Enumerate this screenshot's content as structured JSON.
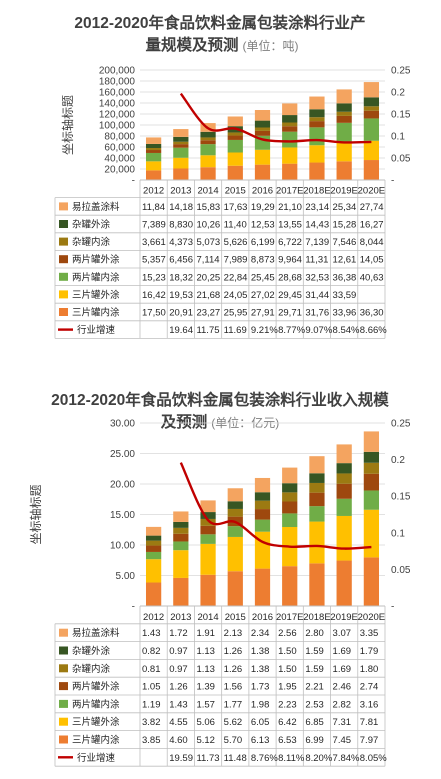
{
  "chart_data": [
    {
      "type": "bar",
      "stacked": true,
      "title_line1": "2012-2020年食品饮料金属包装涂料行业产",
      "title_line2": "量规模及预测",
      "unit_text": "(单位：吨)",
      "ylabel": "坐标轴标题",
      "categories": [
        "2012",
        "2013",
        "2014",
        "2015",
        "2016",
        "2017E",
        "2018E",
        "2019E",
        "2020E"
      ],
      "ylim": [
        0,
        200000
      ],
      "y_ticks": [
        "-",
        "20,000",
        "40,000",
        "60,000",
        "80,000",
        "100,000",
        "120,000",
        "140,000",
        "160,000",
        "180,000",
        "200,000"
      ],
      "y2lim": [
        0,
        0.25
      ],
      "y2_ticks": [
        "-",
        "0.05",
        "0.1",
        "0.15",
        "0.2",
        "0.25"
      ],
      "series": [
        {
          "name": "易拉盖涂料",
          "color": "#f4a460",
          "values": [
            11840,
            14180,
            15830,
            17630,
            19290,
            21100,
            23140,
            25340,
            27740
          ],
          "labels": [
            "11,84",
            "14,18",
            "15,83",
            "17,63",
            "19,29",
            "21,10",
            "23,14",
            "25,34",
            "27,74"
          ]
        },
        {
          "name": "杂罐外涂",
          "color": "#375623",
          "values": [
            7389,
            8830,
            10260,
            11400,
            12530,
            13550,
            14430,
            15280,
            16270
          ],
          "labels": [
            "7,389",
            "8,830",
            "10,26",
            "11,40",
            "12,53",
            "13,55",
            "14,43",
            "15,28",
            "16,27"
          ]
        },
        {
          "name": "杂罐内涂",
          "color": "#9c7a12",
          "values": [
            3661,
            4373,
            5073,
            5626,
            6199,
            6722,
            7139,
            7546,
            8044
          ],
          "labels": [
            "3,661",
            "4,373",
            "5,073",
            "5,626",
            "6,199",
            "6,722",
            "7,139",
            "7,546",
            "8,044"
          ]
        },
        {
          "name": "两片罐外涂",
          "color": "#9e480e",
          "values": [
            5357,
            6456,
            7114,
            7989,
            8873,
            9964,
            11310,
            12610,
            14050
          ],
          "labels": [
            "5,357",
            "6,456",
            "7,114",
            "7,989",
            "8,873",
            "9,964",
            "11,31",
            "12,61",
            "14,05"
          ]
        },
        {
          "name": "两片罐内涂",
          "color": "#70ad47",
          "values": [
            15230,
            18320,
            20250,
            22840,
            25450,
            28680,
            32530,
            36380,
            40630
          ],
          "labels": [
            "15,23",
            "18,32",
            "20,25",
            "22,84",
            "25,45",
            "28,68",
            "32,53",
            "36,38",
            "40,63"
          ]
        },
        {
          "name": "三片罐外涂",
          "color": "#ffc000",
          "values": [
            16420,
            19530,
            21680,
            24050,
            27020,
            29450,
            31440,
            33590,
            35000
          ],
          "labels": [
            "16,42",
            "19,53",
            "21,68",
            "24,05",
            "27,02",
            "29,45",
            "31,44",
            "33,59",
            ""
          ]
        },
        {
          "name": "三片罐内涂",
          "color": "#ed7d31",
          "values": [
            17500,
            20910,
            23270,
            25950,
            27910,
            29710,
            31760,
            33960,
            36300
          ],
          "labels": [
            "17,50",
            "20,91",
            "23,27",
            "25,95",
            "27,91",
            "29,71",
            "31,76",
            "33,96",
            "36,30"
          ]
        }
      ],
      "line": {
        "name": "行业增速",
        "color": "#c00000",
        "values": [
          null,
          0.1964,
          0.1175,
          0.1169,
          0.0921,
          0.0877,
          0.0907,
          0.0854,
          0.0866
        ],
        "labels": [
          "",
          "19.64",
          "11.75",
          "11.69",
          "9.21%",
          "8.77%",
          "9.07%",
          "8.54%",
          "8.66%"
        ]
      }
    },
    {
      "type": "bar",
      "stacked": true,
      "title_line1": "2012-2020年食品饮料金属包装涂料行业收入规模",
      "title_line2": "及预测",
      "unit_text": "(单位：亿元)",
      "ylabel": "坐标轴标题",
      "categories": [
        "2012",
        "2013",
        "2014",
        "2015",
        "2016",
        "2017E",
        "2018E",
        "2019E",
        "2020E"
      ],
      "ylim": [
        0,
        30
      ],
      "y_ticks": [
        "-",
        "5.00",
        "10.00",
        "15.00",
        "20.00",
        "25.00",
        "30.00"
      ],
      "y2lim": [
        0,
        0.25
      ],
      "y2_ticks": [
        "-",
        "0.05",
        "0.1",
        "0.15",
        "0.2",
        "0.25"
      ],
      "series": [
        {
          "name": "易拉盖涂料",
          "color": "#f4a460",
          "values": [
            1.43,
            1.72,
            1.91,
            2.13,
            2.34,
            2.56,
            2.8,
            3.07,
            3.35
          ],
          "labels": [
            "1.43",
            "1.72",
            "1.91",
            "2.13",
            "2.34",
            "2.56",
            "2.80",
            "3.07",
            "3.35"
          ]
        },
        {
          "name": "杂罐外涂",
          "color": "#375623",
          "values": [
            0.82,
            0.97,
            1.13,
            1.26,
            1.38,
            1.5,
            1.59,
            1.69,
            1.79
          ],
          "labels": [
            "0.82",
            "0.97",
            "1.13",
            "1.26",
            "1.38",
            "1.50",
            "1.59",
            "1.69",
            "1.79"
          ]
        },
        {
          "name": "杂罐内涂",
          "color": "#9c7a12",
          "values": [
            0.81,
            0.97,
            1.13,
            1.26,
            1.38,
            1.5,
            1.59,
            1.69,
            1.8
          ],
          "labels": [
            "0.81",
            "0.97",
            "1.13",
            "1.26",
            "1.38",
            "1.50",
            "1.59",
            "1.69",
            "1.80"
          ]
        },
        {
          "name": "两片罐外涂",
          "color": "#9e480e",
          "values": [
            1.05,
            1.26,
            1.39,
            1.56,
            1.73,
            1.95,
            2.21,
            2.46,
            2.74
          ],
          "labels": [
            "1.05",
            "1.26",
            "1.39",
            "1.56",
            "1.73",
            "1.95",
            "2.21",
            "2.46",
            "2.74"
          ]
        },
        {
          "name": "两片罐内涂",
          "color": "#70ad47",
          "values": [
            1.19,
            1.43,
            1.57,
            1.77,
            1.98,
            2.23,
            2.53,
            2.82,
            3.16
          ],
          "labels": [
            "1.19",
            "1.43",
            "1.57",
            "1.77",
            "1.98",
            "2.23",
            "2.53",
            "2.82",
            "3.16"
          ]
        },
        {
          "name": "三片罐外涂",
          "color": "#ffc000",
          "values": [
            3.82,
            4.55,
            5.06,
            5.62,
            6.05,
            6.42,
            6.85,
            7.31,
            7.81
          ],
          "labels": [
            "3.82",
            "4.55",
            "5.06",
            "5.62",
            "6.05",
            "6.42",
            "6.85",
            "7.31",
            "7.81"
          ]
        },
        {
          "name": "三片罐内涂",
          "color": "#ed7d31",
          "values": [
            3.85,
            4.6,
            5.12,
            5.7,
            6.13,
            6.53,
            6.99,
            7.45,
            7.97
          ],
          "labels": [
            "3.85",
            "4.60",
            "5.12",
            "5.70",
            "6.13",
            "6.53",
            "6.99",
            "7.45",
            "7.97"
          ]
        }
      ],
      "line": {
        "name": "行业增速",
        "color": "#c00000",
        "values": [
          null,
          0.1959,
          0.1173,
          0.1148,
          0.0876,
          0.0811,
          0.082,
          0.0784,
          0.0805
        ],
        "labels": [
          "",
          "19.59",
          "11.73",
          "11.48",
          "8.76%",
          "8.11%",
          "8.20%",
          "7.84%",
          "8.05%"
        ]
      }
    }
  ]
}
